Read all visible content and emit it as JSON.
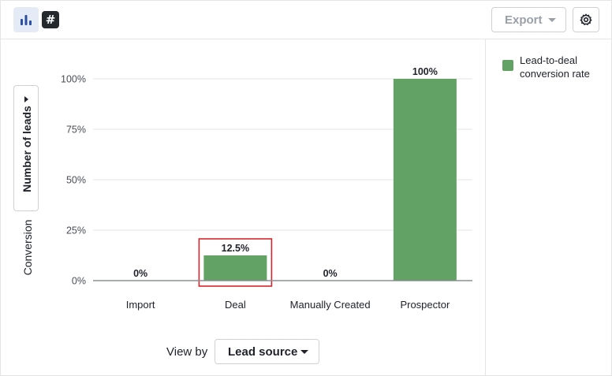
{
  "toolbar": {
    "chart_view_icon": "bar-chart-icon",
    "table_view_icon": "hash-icon",
    "table_view_glyph": "#",
    "export_label": "Export",
    "settings_icon": "gear-icon"
  },
  "colors": {
    "bar": "#62a264",
    "highlight": "#d9262c",
    "accent": "#2d4fa2"
  },
  "y_selector": {
    "label": "Number of leads"
  },
  "view_by": {
    "label": "View by",
    "value": "Lead source"
  },
  "legend": {
    "label": "Lead-to-deal conversion rate"
  },
  "chart_data": {
    "type": "bar",
    "categories": [
      "Import",
      "Deal",
      "Manually Created",
      "Prospector"
    ],
    "series": [
      {
        "name": "Lead-to-deal conversion rate",
        "values": [
          0,
          12.5,
          0,
          100
        ]
      }
    ],
    "data_labels": [
      "0%",
      "12.5%",
      "0%",
      "100%"
    ],
    "ylabel": "Conversion",
    "yticks": [
      "0%",
      "25%",
      "50%",
      "75%",
      "100%"
    ],
    "ylim": [
      0,
      100
    ],
    "grid": true,
    "highlighted_category": "Deal"
  }
}
